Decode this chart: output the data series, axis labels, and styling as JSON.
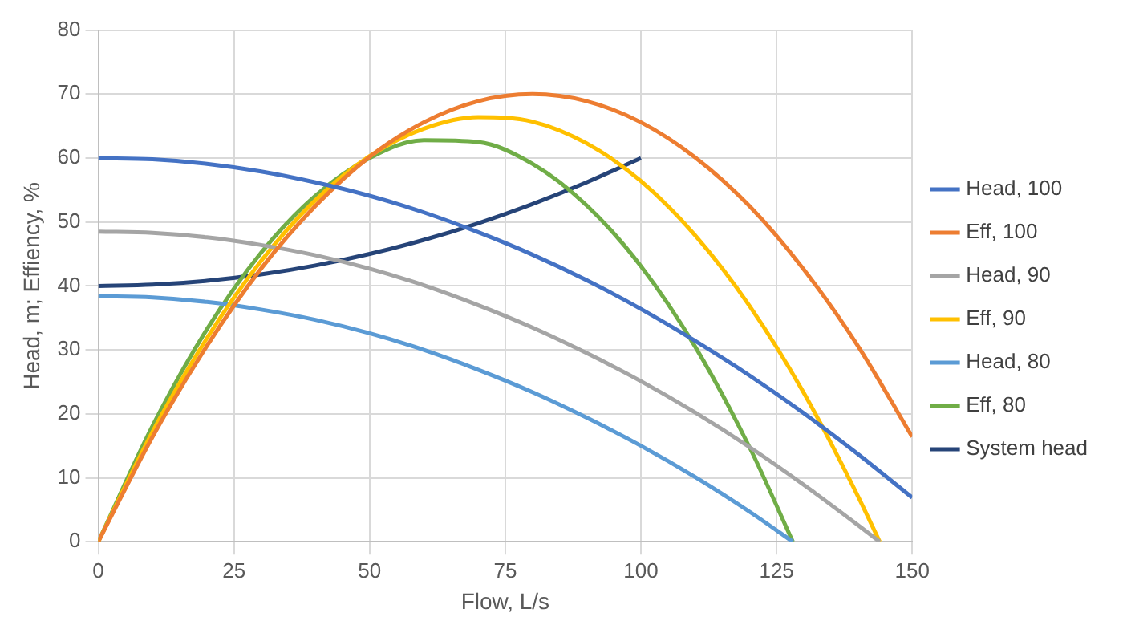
{
  "chart_data": {
    "type": "line",
    "xlabel": "Flow, L/s",
    "ylabel": "Head, m; Effiency, %",
    "xlim": [
      0,
      150
    ],
    "xticks": [
      0,
      25,
      50,
      75,
      100,
      125,
      150
    ],
    "ylim": [
      0,
      80
    ],
    "yticks": [
      0,
      10,
      20,
      30,
      40,
      50,
      60,
      70,
      80
    ],
    "grid": true,
    "legend": "right",
    "marker": "none",
    "line_style": "solid",
    "series": [
      {
        "name": "Head, 100",
        "color": "#4472c4",
        "x": [
          0,
          10,
          20,
          30,
          40,
          50,
          60,
          70,
          80,
          90,
          100,
          110,
          120,
          130,
          140,
          150
        ],
        "values": [
          60,
          59.8,
          59.1,
          57.9,
          56.2,
          54.1,
          51.5,
          48.4,
          44.9,
          40.9,
          36.4,
          31.4,
          26,
          20.1,
          13.7,
          6.9
        ]
      },
      {
        "name": "Eff, 100",
        "color": "#ed7d31",
        "x": [
          0,
          10,
          20,
          30,
          40,
          50,
          60,
          70,
          80,
          90,
          100,
          110,
          120,
          130,
          140,
          150
        ],
        "values": [
          0,
          16.4,
          30.6,
          42.7,
          52.5,
          60.2,
          65.6,
          68.9,
          70,
          68.9,
          65.6,
          60.1,
          52.5,
          42.6,
          30.6,
          16.4
        ]
      },
      {
        "name": "Head, 90",
        "color": "#a5a5a5",
        "x": [
          0,
          10,
          20,
          30,
          40,
          50,
          60,
          70,
          80,
          90,
          100,
          110,
          120,
          130,
          140,
          144
        ],
        "values": [
          48.5,
          48.3,
          47.6,
          46.4,
          44.8,
          42.7,
          40.1,
          37,
          33.5,
          29.5,
          25.1,
          20.2,
          14.8,
          8.9,
          2.6,
          0
        ]
      },
      {
        "name": "Eff, 90",
        "color": "#ffc000",
        "x": [
          0,
          10,
          20,
          30,
          40,
          50,
          60,
          70,
          80,
          90,
          100,
          110,
          120,
          130,
          140,
          144
        ],
        "values": [
          0,
          17.2,
          31.8,
          43.9,
          53.4,
          60.3,
          64.6,
          66.4,
          65.7,
          62.3,
          56.4,
          47.9,
          36.9,
          23.3,
          7.1,
          0
        ]
      },
      {
        "name": "Head, 80",
        "color": "#5b9bd5",
        "x": [
          0,
          10,
          20,
          30,
          40,
          50,
          60,
          70,
          80,
          90,
          100,
          110,
          120,
          128
        ],
        "values": [
          38.4,
          38.2,
          37.5,
          36.3,
          34.7,
          32.6,
          30,
          26.9,
          23.4,
          19.4,
          15,
          10.1,
          4.7,
          0
        ]
      },
      {
        "name": "Eff, 80",
        "color": "#70ad47",
        "x": [
          0,
          10,
          20,
          30,
          40,
          50,
          60,
          70,
          80,
          90,
          100,
          110,
          120,
          128
        ],
        "values": [
          0,
          18.1,
          33.2,
          45.2,
          54.1,
          60,
          62.8,
          62.5,
          59.1,
          52.6,
          43.1,
          30.5,
          14.8,
          0
        ]
      },
      {
        "name": "System head",
        "color": "#264478",
        "x": [
          0,
          10,
          20,
          30,
          40,
          50,
          60,
          70,
          80,
          90,
          100
        ],
        "values": [
          40,
          40.2,
          40.8,
          41.8,
          43.2,
          45,
          47.2,
          49.8,
          52.8,
          56.2,
          60
        ]
      }
    ]
  }
}
